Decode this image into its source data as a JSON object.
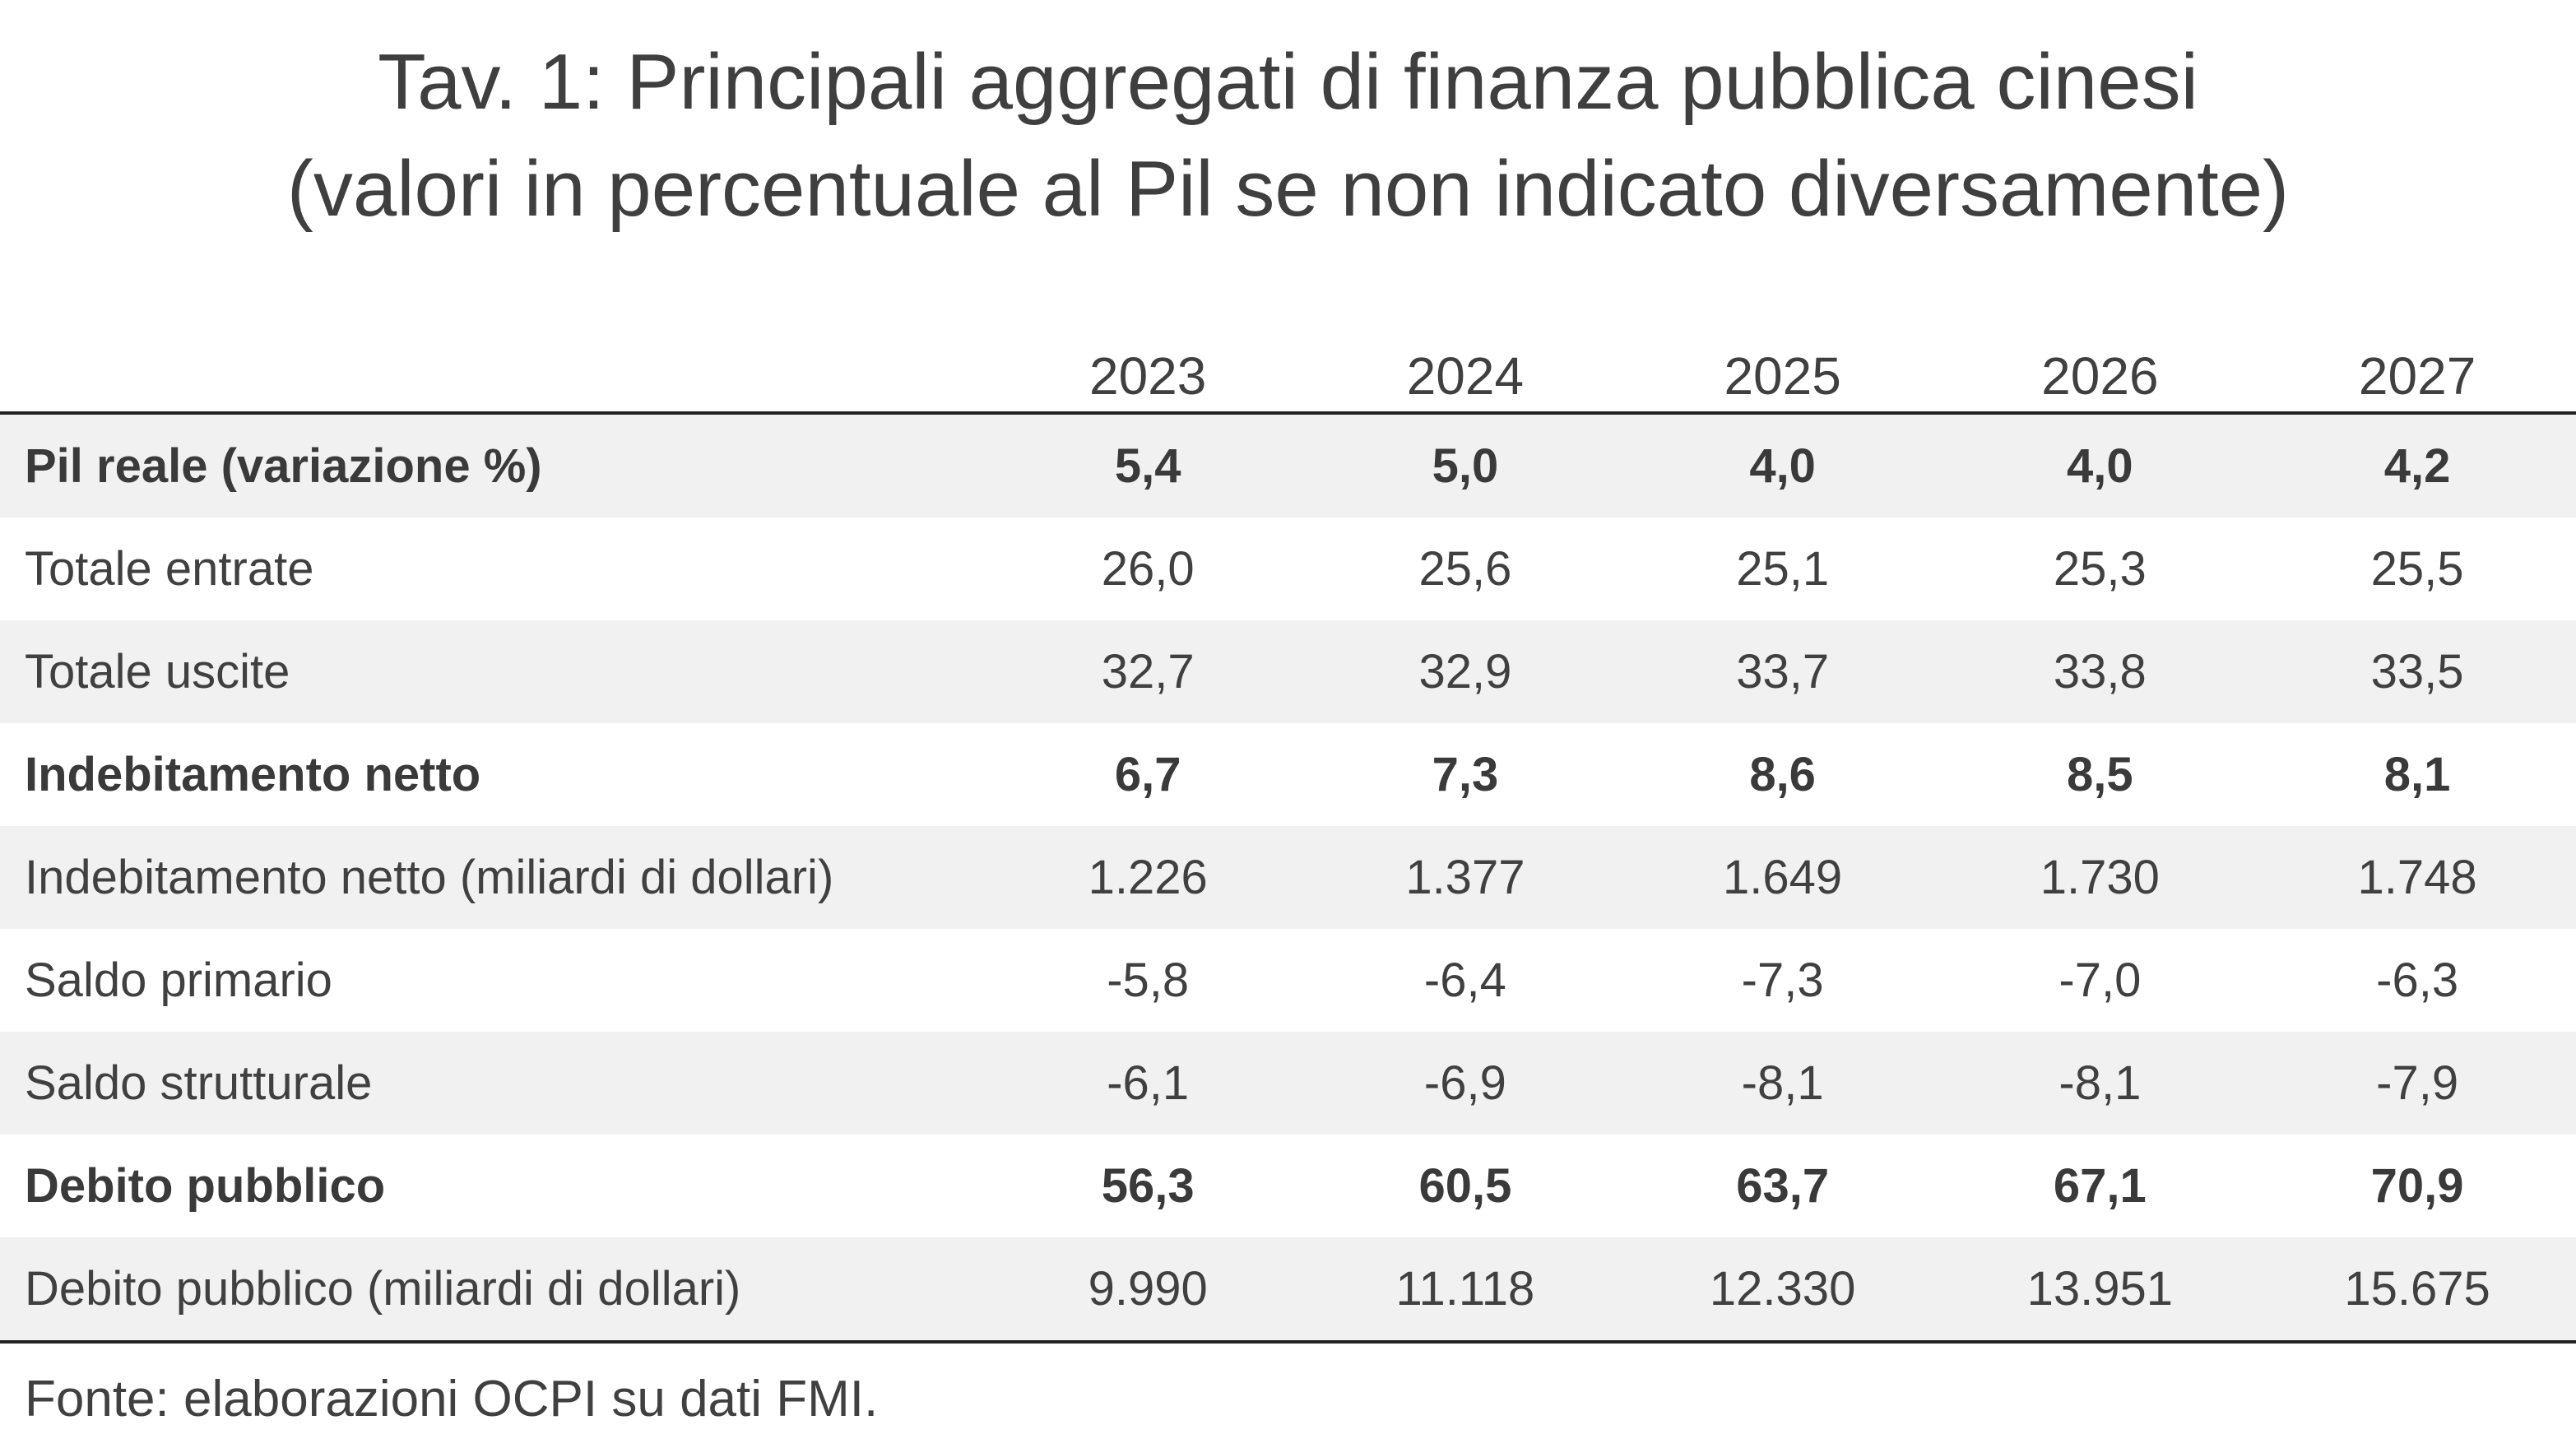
{
  "title": "Tav. 1: Principali aggregati di finanza pubblica cinesi",
  "subtitle": "(valori in percentuale al Pil se non indicato diversamente)",
  "source": "Fonte: elaborazioni OCPI su dati FMI.",
  "chart_data": {
    "type": "table",
    "title": "Tav. 1: Principali aggregati di finanza pubblica cinesi",
    "subtitle": "(valori in percentuale al Pil se non indicato diversamente)",
    "columns": [
      "2023",
      "2024",
      "2025",
      "2026",
      "2027"
    ],
    "rows": [
      {
        "label": "Pil reale (variazione %)",
        "bold": true,
        "values": [
          "5,4",
          "5,0",
          "4,0",
          "4,0",
          "4,2"
        ]
      },
      {
        "label": "Totale entrate",
        "bold": false,
        "values": [
          "26,0",
          "25,6",
          "25,1",
          "25,3",
          "25,5"
        ]
      },
      {
        "label": "Totale uscite",
        "bold": false,
        "values": [
          "32,7",
          "32,9",
          "33,7",
          "33,8",
          "33,5"
        ]
      },
      {
        "label": "Indebitamento netto",
        "bold": true,
        "values": [
          "6,7",
          "7,3",
          "8,6",
          "8,5",
          "8,1"
        ]
      },
      {
        "label": "Indebitamento netto (miliardi di dollari)",
        "bold": false,
        "values": [
          "1.226",
          "1.377",
          "1.649",
          "1.730",
          "1.748"
        ]
      },
      {
        "label": "Saldo primario",
        "bold": false,
        "values": [
          "-5,8",
          "-6,4",
          "-7,3",
          "-7,0",
          "-6,3"
        ]
      },
      {
        "label": "Saldo strutturale",
        "bold": false,
        "values": [
          "-6,1",
          "-6,9",
          "-8,1",
          "-8,1",
          "-7,9"
        ]
      },
      {
        "label": "Debito pubblico",
        "bold": true,
        "values": [
          "56,3",
          "60,5",
          "63,7",
          "67,1",
          "70,9"
        ]
      },
      {
        "label": "Debito pubblico (miliardi di dollari)",
        "bold": false,
        "values": [
          "9.990",
          "11.118",
          "12.330",
          "13.951",
          "15.675"
        ]
      }
    ],
    "colors": {
      "text": "#404040",
      "row_shading": "#f1f1f1",
      "rule": "#222222"
    }
  }
}
